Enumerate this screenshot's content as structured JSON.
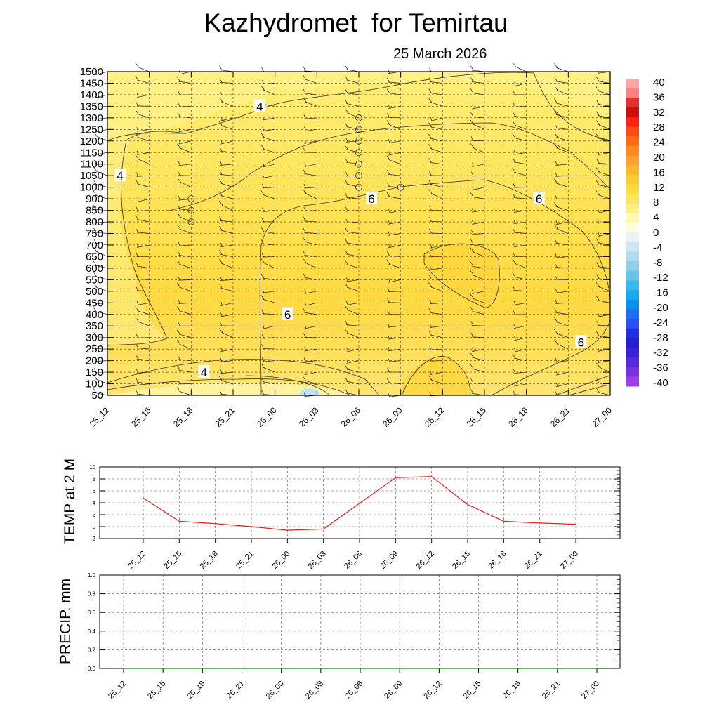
{
  "title": "Kazhydromet  for Temirtau",
  "subtitle": "25 March 2026",
  "chart_data": [
    {
      "type": "heatmap",
      "y_ticks": [
        1500,
        1450,
        1400,
        1350,
        1300,
        1250,
        1200,
        1150,
        1100,
        1050,
        1000,
        900,
        850,
        800,
        750,
        700,
        650,
        600,
        550,
        500,
        450,
        400,
        350,
        300,
        250,
        200,
        150,
        100,
        50
      ],
      "x_ticks": [
        "25_12",
        "25_15",
        "25_18",
        "25_21",
        "26_00",
        "26_03",
        "26_06",
        "26_09",
        "26_12",
        "26_15",
        "26_18",
        "26_21",
        "27_00"
      ],
      "contour_labels": [
        {
          "text": "4",
          "x": "25_21",
          "y": 1350
        },
        {
          "text": "4",
          "x": "25_12",
          "y": 1050
        },
        {
          "text": "6",
          "x": "26_06",
          "y": 900
        },
        {
          "text": "6",
          "x": "26_18",
          "y": 900
        },
        {
          "text": "6",
          "x": "26_00",
          "y": 400
        },
        {
          "text": "6",
          "x": "26_21",
          "y": 280
        },
        {
          "text": "4",
          "x": "25_18",
          "y": 150
        }
      ],
      "colorbar": {
        "labels": [
          "40",
          "36",
          "32",
          "28",
          "24",
          "20",
          "16",
          "12",
          "8",
          "4",
          "0",
          "-4",
          "-8",
          "-12",
          "-16",
          "-20",
          "-24",
          "-28",
          "-32",
          "-36",
          "-40"
        ]
      }
    },
    {
      "type": "line",
      "ylabel": "TEMP at 2 M",
      "ylim": [
        -2,
        10
      ],
      "y_ticks": [
        "10",
        "8",
        "6",
        "4",
        "2",
        "0",
        "-2"
      ],
      "categories": [
        "25_12",
        "25_15",
        "25_18",
        "25_21",
        "26_00",
        "26_03",
        "26_06",
        "26_09",
        "26_12",
        "26_15",
        "26_18",
        "26_21",
        "27_00"
      ],
      "values": [
        4.8,
        0.9,
        0.5,
        0.0,
        -0.6,
        -0.4,
        3.9,
        8.2,
        8.4,
        3.7,
        0.9,
        0.6,
        0.4
      ],
      "line_color": "#e8201c"
    },
    {
      "type": "line",
      "ylabel": "PRECIP, mm",
      "ylim": [
        0,
        1.0
      ],
      "y_ticks": [
        "1.0",
        "0.8",
        "0.6",
        "0.4",
        "0.2",
        "0.0"
      ],
      "categories": [
        "25_12",
        "25_15",
        "25_18",
        "25_21",
        "26_00",
        "26_03",
        "26_06",
        "26_09",
        "26_12",
        "26_15",
        "26_18",
        "26_21",
        "27_00"
      ],
      "values": [
        0,
        0,
        0,
        0,
        0,
        0,
        0,
        0,
        0,
        0,
        0,
        0,
        0
      ],
      "line_color": "#1f7a1f"
    }
  ]
}
